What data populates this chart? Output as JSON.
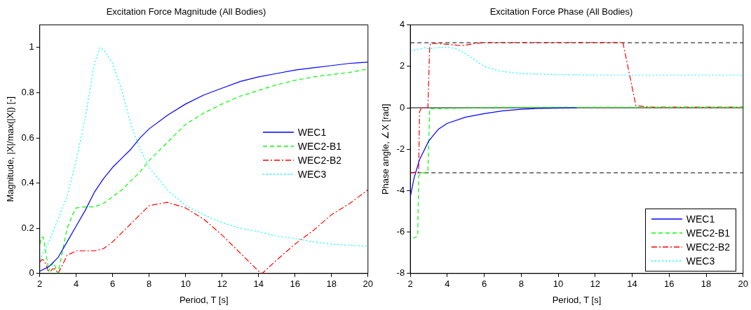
{
  "chart_data": [
    {
      "type": "line",
      "title": "Excitation Force Magnitude (All Bodies)",
      "xlabel": "Period, T [s]",
      "ylabel": "Magnitude, |X|/max(|X|) [-]",
      "xlim": [
        2,
        20
      ],
      "xticks": [
        2,
        4,
        6,
        8,
        10,
        12,
        14,
        16,
        18,
        20
      ],
      "ylim": [
        0,
        1.1
      ],
      "yticks": [
        0,
        0.2,
        0.4,
        0.6,
        0.8,
        1
      ],
      "grid": false,
      "legend": "right",
      "marker": "none",
      "series": [
        {
          "name": "WEC1",
          "color": "#0000ff",
          "line_style": "solid",
          "x": [
            2,
            2.5,
            3,
            3.5,
            4,
            4.5,
            5,
            5.5,
            6,
            6.5,
            7,
            7.5,
            8,
            9,
            10,
            11,
            12,
            13,
            14,
            15,
            16,
            17,
            18,
            19,
            20
          ],
          "values": [
            0.01,
            0.03,
            0.07,
            0.14,
            0.21,
            0.28,
            0.36,
            0.42,
            0.47,
            0.51,
            0.55,
            0.6,
            0.64,
            0.7,
            0.75,
            0.79,
            0.82,
            0.85,
            0.87,
            0.885,
            0.9,
            0.91,
            0.92,
            0.93,
            0.935
          ]
        },
        {
          "name": "WEC2-B1",
          "color": "#00ff00",
          "line_style": "dashed",
          "x": [
            2,
            2.1,
            2.2,
            2.4,
            2.5,
            2.6,
            2.75,
            2.9,
            3,
            3.1,
            3.3,
            3.5,
            3.8,
            4,
            4.5,
            5,
            5.5,
            6,
            6.5,
            7,
            7.5,
            8,
            9,
            10,
            11,
            12,
            13,
            14,
            15,
            16,
            17,
            18,
            19,
            20
          ],
          "values": [
            0.13,
            0.16,
            0.16,
            0.06,
            0.01,
            0.03,
            0.05,
            0.02,
            0,
            0.04,
            0.12,
            0.2,
            0.26,
            0.29,
            0.295,
            0.295,
            0.31,
            0.34,
            0.37,
            0.41,
            0.45,
            0.5,
            0.58,
            0.66,
            0.71,
            0.75,
            0.785,
            0.81,
            0.835,
            0.855,
            0.87,
            0.88,
            0.89,
            0.905
          ]
        },
        {
          "name": "WEC2-B2",
          "color": "#ff0000",
          "line_style": "dashdot",
          "x": [
            2,
            2.1,
            2.2,
            2.35,
            2.5,
            2.6,
            2.7,
            2.85,
            3,
            3.2,
            3.5,
            4,
            4.5,
            5,
            5.5,
            6,
            6.5,
            7,
            7.5,
            8,
            9,
            10,
            11,
            12,
            13,
            14,
            14.2,
            15,
            16,
            17,
            18,
            19,
            20
          ],
          "values": [
            0.05,
            0.06,
            0.06,
            0.04,
            0,
            0.01,
            0.02,
            0.02,
            0,
            0.03,
            0.08,
            0.1,
            0.1,
            0.1,
            0.11,
            0.14,
            0.18,
            0.22,
            0.26,
            0.3,
            0.315,
            0.29,
            0.24,
            0.17,
            0.09,
            0.01,
            0,
            0.06,
            0.13,
            0.19,
            0.26,
            0.31,
            0.37
          ]
        },
        {
          "name": "WEC3",
          "color": "#00ffff",
          "line_style": "dotted",
          "x": [
            2,
            2.5,
            3,
            3.5,
            4,
            4.5,
            5,
            5.3,
            5.5,
            6,
            6.5,
            7,
            7.5,
            8,
            9,
            10,
            11,
            12,
            13,
            14,
            15,
            16,
            17,
            18,
            19,
            20
          ],
          "values": [
            0.06,
            0.14,
            0.24,
            0.34,
            0.5,
            0.69,
            0.93,
            1,
            0.99,
            0.93,
            0.81,
            0.66,
            0.55,
            0.47,
            0.37,
            0.3,
            0.26,
            0.225,
            0.2,
            0.185,
            0.165,
            0.155,
            0.14,
            0.13,
            0.125,
            0.12
          ]
        }
      ]
    },
    {
      "type": "line",
      "title": "Excitation Force Phase (All Bodies)",
      "xlabel": "Period, T [s]",
      "ylabel": "Phase angle, ∠X [rad]",
      "xlim": [
        2,
        20
      ],
      "xticks": [
        2,
        4,
        6,
        8,
        10,
        12,
        14,
        16,
        18,
        20
      ],
      "ylim": [
        -8,
        4
      ],
      "yticks": [
        -8,
        -6,
        -4,
        -2,
        0,
        2,
        4
      ],
      "grid": false,
      "legend": "bottom right",
      "marker": "none",
      "ref_lines": [
        {
          "axis": "y",
          "value": 3.14,
          "label": null,
          "color": "#000000",
          "line_style": "dashed"
        },
        {
          "axis": "y",
          "value": -3.14,
          "label": null,
          "color": "#000000",
          "line_style": "dashed"
        },
        {
          "axis": "y",
          "value": 0,
          "label": null,
          "color": "#000000",
          "line_style": "solid"
        }
      ],
      "series": [
        {
          "name": "WEC1",
          "color": "#0000ff",
          "line_style": "solid",
          "x": [
            2,
            2.2,
            2.5,
            3,
            3.5,
            4,
            5,
            6,
            7,
            8,
            9,
            10,
            11
          ],
          "values": [
            -4.3,
            -3.4,
            -2.5,
            -1.6,
            -1.05,
            -0.75,
            -0.45,
            -0.28,
            -0.15,
            -0.07,
            -0.03,
            -0.01,
            0
          ]
        },
        {
          "name": "WEC2-B1",
          "color": "#00ff00",
          "line_style": "dashed",
          "x": [
            2.15,
            2.4,
            2.45,
            2.6,
            2.95,
            3.05,
            5,
            6.5,
            20
          ],
          "values": [
            -6.3,
            -6.2,
            -3.3,
            -3.15,
            -3.1,
            -0.05,
            -0.02,
            0.02,
            0.02
          ]
        },
        {
          "name": "WEC2-B2",
          "color": "#ff0000",
          "line_style": "dashdot",
          "x": [
            2,
            2.45,
            2.5,
            2.6,
            2.95,
            3.05,
            3.1,
            3.5,
            4,
            4.8,
            5.5,
            6,
            13.5,
            14.2,
            15,
            20
          ],
          "values": [
            -3.14,
            -3.1,
            -0.2,
            0,
            0,
            3,
            3.1,
            3.1,
            3.06,
            3,
            3.1,
            3.15,
            3.15,
            0.1,
            0.03,
            0.03
          ]
        },
        {
          "name": "WEC3",
          "color": "#00ffff",
          "line_style": "dotted",
          "x": [
            2,
            2.3,
            2.8,
            3,
            3.5,
            4,
            4.5,
            5,
            5.5,
            6,
            6.5,
            7,
            8,
            10,
            12,
            20
          ],
          "values": [
            2.75,
            2.8,
            2.9,
            2.85,
            2.9,
            2.93,
            2.85,
            2.6,
            2.3,
            2,
            1.85,
            1.75,
            1.65,
            1.6,
            1.58,
            1.58
          ]
        }
      ]
    }
  ]
}
